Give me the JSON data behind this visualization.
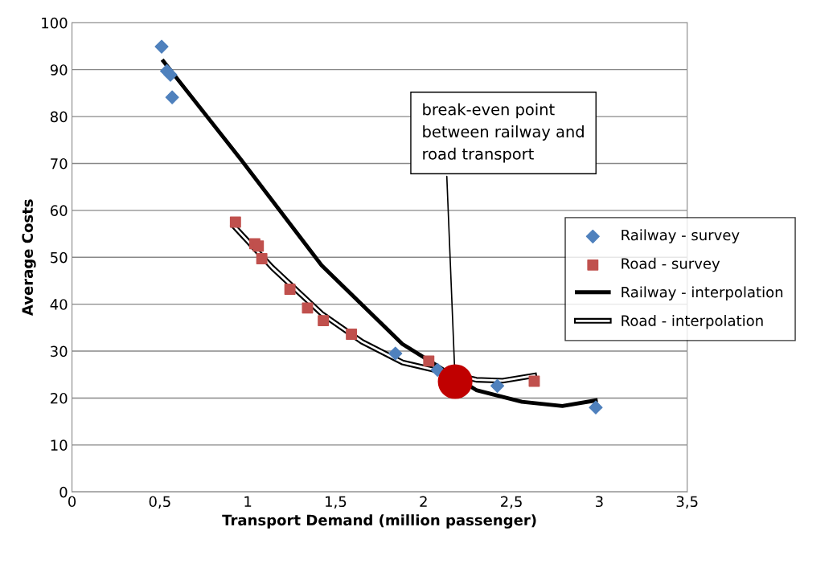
{
  "chart_data": {
    "type": "scatter",
    "xlabel": "Transport Demand (million passenger)",
    "ylabel": "Average Costs",
    "xlim": [
      0,
      3.5
    ],
    "ylim": [
      0,
      100
    ],
    "xticks": [
      0,
      {
        "value": 0.5,
        "label": "0,5"
      },
      1,
      {
        "value": 1.5,
        "label": "1,5"
      },
      2,
      {
        "value": 2.5,
        "label": "2,5"
      },
      3,
      {
        "value": 3.5,
        "label": "3,5"
      }
    ],
    "yticks": [
      0,
      10,
      20,
      30,
      40,
      50,
      60,
      70,
      80,
      90,
      100
    ],
    "grid": "y",
    "legend": "right",
    "series": [
      {
        "name": "Railway - survey",
        "marker": "diamond",
        "color": "#4f81bd",
        "x": [
          0.51,
          0.54,
          0.56,
          0.57,
          1.84,
          2.08,
          2.42,
          2.98
        ],
        "values": [
          94.9,
          89.7,
          88.9,
          84.1,
          29.5,
          26.0,
          22.6,
          18.0
        ]
      },
      {
        "name": "Road - survey",
        "marker": "square",
        "color": "#c0504d",
        "x": [
          0.93,
          1.04,
          1.06,
          1.08,
          1.24,
          1.34,
          1.43,
          1.59,
          2.03,
          2.63
        ],
        "values": [
          57.5,
          52.9,
          52.4,
          49.7,
          43.2,
          39.2,
          36.5,
          33.6,
          27.9,
          23.6
        ]
      },
      {
        "name": "Railway - interpolation",
        "type": "line",
        "marker": "none",
        "color": "#000000",
        "x": [
          0.52,
          0.96,
          1.42,
          1.88,
          2.3,
          2.56,
          2.79,
          2.98
        ],
        "values": [
          91.8,
          70.9,
          48.3,
          31.5,
          21.7,
          19.2,
          18.3,
          19.5
        ]
      },
      {
        "name": "Road - interpolation",
        "type": "line",
        "marker": "none",
        "line_style": "solid",
        "color": "#000000",
        "x": [
          0.92,
          1.14,
          1.42,
          1.65,
          1.88,
          2.3,
          2.45,
          2.63
        ],
        "values": [
          56.7,
          47.8,
          38.0,
          32.0,
          27.6,
          23.9,
          23.7,
          24.8
        ]
      },
      {
        "type": "bubble",
        "marker": "circle",
        "color": "#c00000",
        "x": [
          2.18
        ],
        "values": [
          23.5
        ],
        "sizes": [
          1
        ]
      }
    ],
    "annotations": [
      {
        "text": "break-even point\nbetween railway and\nroad transport",
        "x": 2.18,
        "y": 23.5
      }
    ]
  }
}
